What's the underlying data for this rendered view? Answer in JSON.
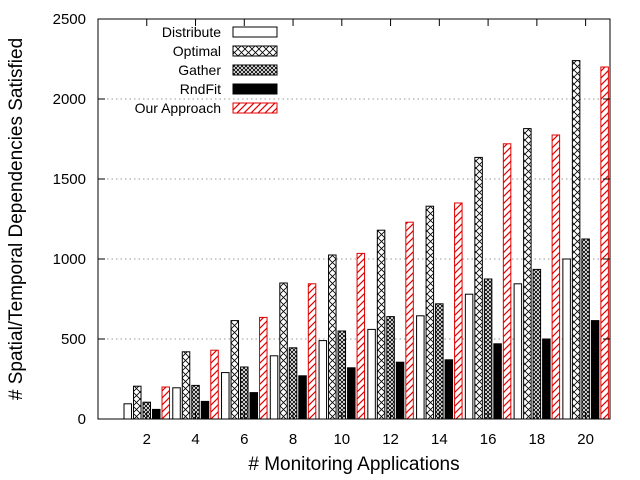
{
  "chart_data": {
    "type": "bar",
    "xlabel": "# Monitoring Applications",
    "ylabel": "# Spatial/Temporal Dependencies Satisfied",
    "categories": [
      "2",
      "4",
      "6",
      "8",
      "10",
      "12",
      "14",
      "16",
      "18",
      "20"
    ],
    "ylim": [
      0,
      2500
    ],
    "yticks": [
      0,
      500,
      1000,
      1500,
      2000,
      2500
    ],
    "grid": true,
    "legend_position": "top-left",
    "series": [
      {
        "name": "Distribute",
        "values": [
          95,
          195,
          290,
          395,
          490,
          560,
          645,
          780,
          845,
          1000
        ],
        "pattern": "empty",
        "color": "#000000"
      },
      {
        "name": "Optimal",
        "values": [
          205,
          420,
          615,
          850,
          1025,
          1180,
          1330,
          1635,
          1815,
          2240
        ],
        "pattern": "crosshatch",
        "color": "#000000"
      },
      {
        "name": "Gather",
        "values": [
          105,
          210,
          325,
          445,
          550,
          640,
          720,
          875,
          935,
          1125
        ],
        "pattern": "dense-crosshatch",
        "color": "#000000"
      },
      {
        "name": "RndFit",
        "values": [
          60,
          110,
          165,
          270,
          320,
          355,
          370,
          470,
          500,
          615
        ],
        "pattern": "solid",
        "color": "#000000"
      },
      {
        "name": "Our Approach",
        "values": [
          200,
          430,
          635,
          845,
          1035,
          1230,
          1350,
          1720,
          1775,
          2200
        ],
        "pattern": "diagonal",
        "color": "#e00000"
      }
    ]
  }
}
